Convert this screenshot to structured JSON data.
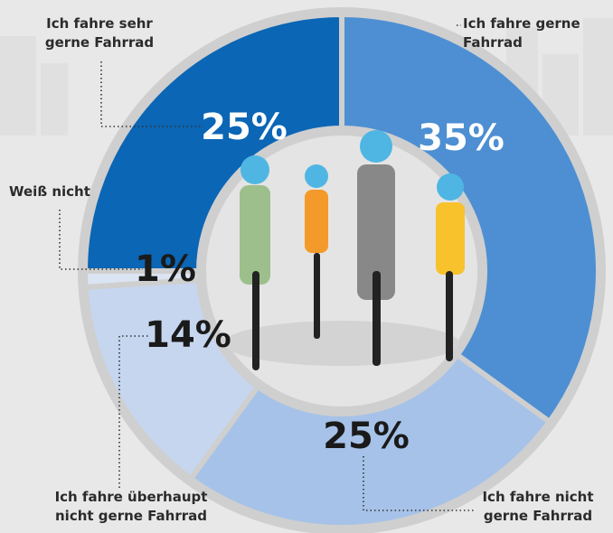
{
  "chart_data": {
    "type": "donut",
    "categories": [
      "Ich fahre gerne Fahrrad",
      "Ich fahre nicht gerne Fahrrad",
      "Ich fahre überhaupt nicht gerne Fahrrad",
      "Weiß nicht",
      "Ich fahre sehr gerne Fahrrad"
    ],
    "values": [
      35,
      25,
      14,
      1,
      25
    ],
    "value_labels": [
      "35%",
      "25%",
      "14%",
      "1%",
      "25%"
    ],
    "colors": [
      "#4d8fd2",
      "#a6c2e8",
      "#c6d6ef",
      "#dbe4f2",
      "#0b66b5"
    ]
  }
}
